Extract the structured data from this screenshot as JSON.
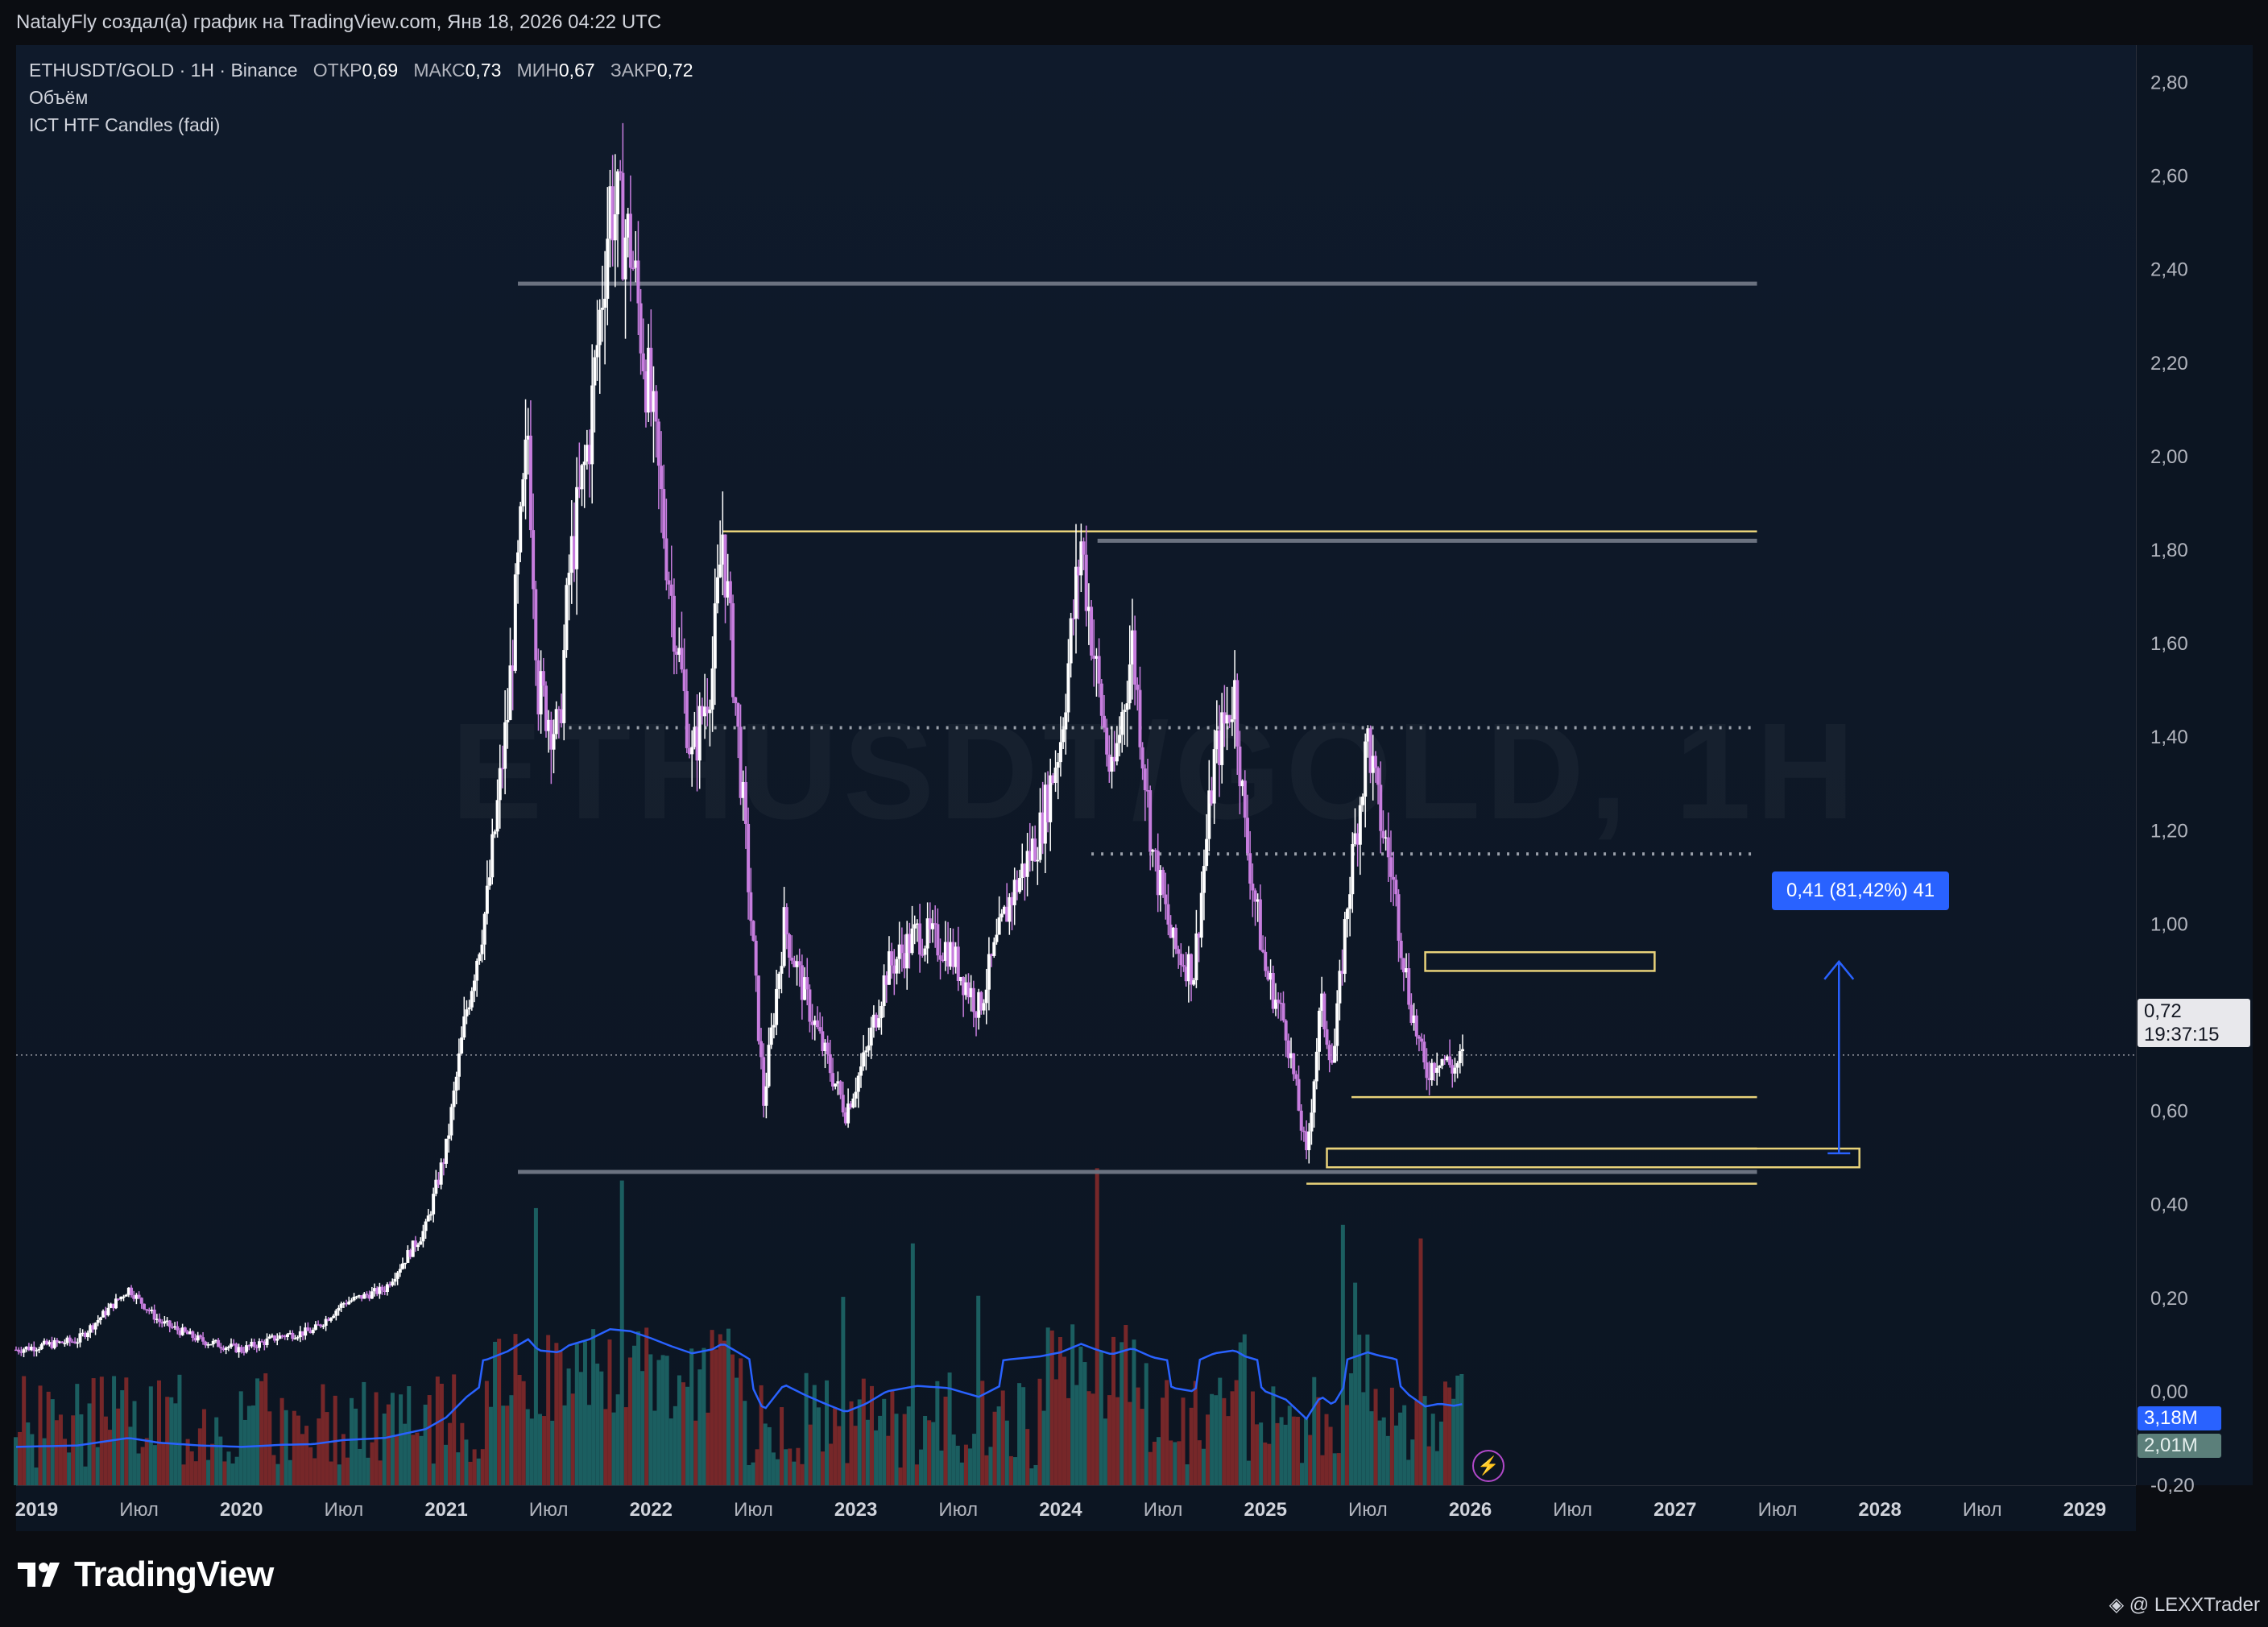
{
  "header": {
    "attribution": "NatalyFly создал(а) график на TradingView.com, Янв 18, 2026 04:22 UTC"
  },
  "legend": {
    "symbol": "ETHUSDT/GOLD · 1H · Binance",
    "open_label": "ОТКР",
    "open_value": "0,69",
    "high_label": "МАКС",
    "high_value": "0,73",
    "low_label": "МИН",
    "low_value": "0,67",
    "close_label": "ЗАКР",
    "close_value": "0,72",
    "indicator_1": "Объём",
    "indicator_2": "ICT HTF Candles (fadi)"
  },
  "watermark": "ETHUSDT/GOLD, 1H",
  "price_scale": {
    "last_price": "0,72",
    "countdown": "19:37:15",
    "volume_value_1": "3,18M",
    "volume_value_2": "2,01M"
  },
  "measure": {
    "label": "0,41 (81,42%) 41"
  },
  "footer": {
    "logo_text": "TradingView",
    "credit": "@ LEXXTrader"
  },
  "colors": {
    "background": "#0f1a2b",
    "bull_candle": "#ffffff",
    "bear_candle": "#c77dde",
    "zone_yellow": "#e8d27a",
    "level_gray": "#6b7280",
    "measure_blue": "#2962ff",
    "volume_up": "#1f6b6b",
    "volume_down": "#8a2a2a",
    "volume_ma": "#2962ff"
  },
  "chart_data": {
    "type": "line",
    "title": "ETHUSDT/GOLD · 1H · Binance",
    "xlabel": "",
    "ylabel": "",
    "y_ticks": [
      "2,80",
      "2,60",
      "2,40",
      "2,20",
      "2,00",
      "1,80",
      "1,60",
      "1,40",
      "1,20",
      "1,00",
      "0,80",
      "0,60",
      "0,40",
      "0,20",
      "0,00",
      "-0,20"
    ],
    "y_tick_values": [
      2.8,
      2.6,
      2.4,
      2.2,
      2.0,
      1.8,
      1.6,
      1.4,
      1.2,
      1.0,
      0.8,
      0.6,
      0.4,
      0.2,
      0.0,
      -0.2
    ],
    "ylim": [
      -0.2,
      2.88
    ],
    "x_ticks": [
      "2019",
      "Июл",
      "2020",
      "Июл",
      "2021",
      "Июл",
      "2022",
      "Июл",
      "2023",
      "Июл",
      "2024",
      "Июл",
      "2025",
      "Июл",
      "2026",
      "Июл",
      "2027",
      "Июл",
      "2028",
      "Июл",
      "2029"
    ],
    "x_tick_values": [
      2019.0,
      2019.5,
      2020.0,
      2020.5,
      2021.0,
      2021.5,
      2022.0,
      2022.5,
      2023.0,
      2023.5,
      2024.0,
      2024.5,
      2025.0,
      2025.5,
      2026.0,
      2026.5,
      2027.0,
      2027.5,
      2028.0,
      2028.5,
      2029.0
    ],
    "xlim": [
      2018.9,
      2029.25
    ],
    "series": [
      {
        "values_x": [
          2018.9,
          2019.2,
          2019.45,
          2019.6,
          2019.8,
          2020.0,
          2020.2,
          2020.35,
          2020.5,
          2020.7,
          2020.9,
          2021.0,
          2021.1,
          2021.2,
          2021.3,
          2021.4,
          2021.45,
          2021.55,
          2021.6,
          2021.7,
          2021.8,
          2021.9,
          2022.0,
          2022.1,
          2022.2,
          2022.3,
          2022.35,
          2022.45,
          2022.55,
          2022.65,
          2022.75,
          2022.85,
          2022.95,
          2023.05,
          2023.15,
          2023.3,
          2023.45,
          2023.6,
          2023.75,
          2023.9,
          2024.0,
          2024.1,
          2024.17,
          2024.25,
          2024.35,
          2024.45,
          2024.55,
          2024.65,
          2024.75,
          2024.85,
          2024.9,
          2025.0,
          2025.1,
          2025.2,
          2025.27,
          2025.33,
          2025.4,
          2025.5,
          2025.55,
          2025.62,
          2025.7,
          2025.78,
          2025.85,
          2025.92,
          2025.97
        ],
        "values_y": [
          0.09,
          0.11,
          0.22,
          0.15,
          0.11,
          0.09,
          0.12,
          0.13,
          0.19,
          0.22,
          0.35,
          0.52,
          0.82,
          1.05,
          1.45,
          2.05,
          1.5,
          1.4,
          1.75,
          2.05,
          2.55,
          2.45,
          2.1,
          1.7,
          1.35,
          1.55,
          1.84,
          1.25,
          0.62,
          1.0,
          0.85,
          0.72,
          0.6,
          0.72,
          0.9,
          0.98,
          0.95,
          0.82,
          1.05,
          1.2,
          1.4,
          1.82,
          1.55,
          1.3,
          1.6,
          1.15,
          0.95,
          0.9,
          1.35,
          1.5,
          1.2,
          0.9,
          0.78,
          0.5,
          0.83,
          0.7,
          1.05,
          1.4,
          1.25,
          1.1,
          0.85,
          0.68,
          0.72,
          0.69,
          0.72
        ]
      }
    ],
    "levels": {
      "gray": [
        2.37,
        1.82,
        0.47
      ],
      "gray_dotted": [
        1.42,
        1.15
      ],
      "yellow": [
        1.84,
        0.63,
        0.52,
        0.445
      ],
      "yellow_zone_upper": [
        0.9,
        0.94
      ],
      "yellow_zone_lower": [
        0.48,
        0.52
      ]
    },
    "measure": {
      "from": 0.51,
      "to": 0.92,
      "text": "0,41 (81,42%) 41"
    },
    "last_price": 0.72,
    "grid": false,
    "legend": "top-left"
  }
}
